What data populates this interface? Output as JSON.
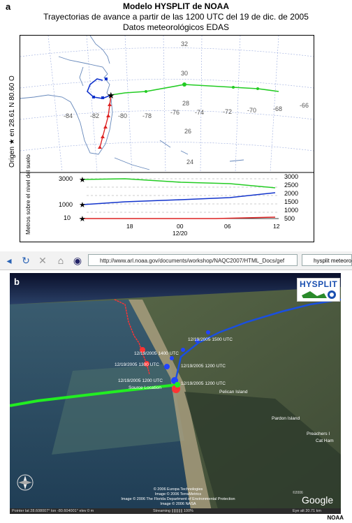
{
  "panel_a": {
    "label": "a",
    "title": "Modelo HYSPLIT de NOAA",
    "subtitle": "Trayectorias de avance a partir de las 1200 UTC del 19 de dic. de 2005",
    "subtitle2": "Datos meteorológicos EDAS",
    "side_label": "Origen ★ en 28.61 N 80.60 O",
    "lon_labels": [
      "-84",
      "-82",
      "-80",
      "-78",
      "-76",
      "-74",
      "-72",
      "-70",
      "-68",
      "-66"
    ],
    "lat_labels": [
      "32",
      "30",
      "28",
      "26",
      "24"
    ],
    "height_axis_label": "Metros sobre el nivel del suelo",
    "left_ticks": [
      "3000",
      "1000",
      "10"
    ],
    "right_ticks": [
      "3000",
      "2500",
      "2000",
      "1500",
      "1000",
      "500"
    ],
    "time_ticks": [
      "18",
      "00",
      "06",
      "12"
    ],
    "date_tick": "12/20",
    "colors": {
      "green": "#22cc22",
      "blue": "#1133cc",
      "red": "#dd2222"
    }
  },
  "browser": {
    "url": "http://www.arl.noaa.gov/documents/workshop/NAQC2007/HTML_Docs/gef",
    "search": "hysplit meteorology",
    "back_icon": "back-arrow-icon",
    "refresh_icon": "refresh-icon",
    "stop_icon": "stop-icon",
    "home_icon": "home-icon"
  },
  "panel_b": {
    "label": "b",
    "logo_text": "HYSPLIT",
    "traj_labels": [
      "12/19/2005 1500 UTC",
      "12/19/2005 1400 UTC",
      "12/19/2005 1300 UTC",
      "12/19/2005 1200 UTC",
      "12/19/2005 1200 UTC",
      "12/19/2005 1200 UTC"
    ],
    "source_location": "Source Location",
    "place_labels": [
      "Pelican Island",
      "Pardon Island",
      "Preachers I",
      "Cat Ham"
    ],
    "credits": [
      "© 2006 Europa Technologies",
      "Image © 2006 TerraMetrics",
      "Image © 2006 The Florida Department of Environmental Protection",
      "Image © 2006 NASA"
    ],
    "google_logo": "Google",
    "google_year": "©2006",
    "status": {
      "pointer": "Pointer  lat  28.608007°   lon  -80.604001°   elev   0 m",
      "streaming": "Streaming |||||||||||  100%",
      "eye_alt": "Eye  alt   20.71 km"
    }
  },
  "footer": {
    "credit": "NOAA"
  }
}
